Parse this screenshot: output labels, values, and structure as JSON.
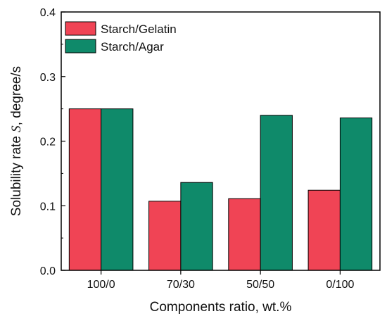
{
  "chart_data": {
    "type": "bar",
    "categories": [
      "100/0",
      "70/30",
      "50/50",
      "0/100"
    ],
    "series": [
      {
        "name": "Starch/Gelatin",
        "values": [
          0.25,
          0.107,
          0.111,
          0.124
        ],
        "color": "#f04455"
      },
      {
        "name": "Starch/Agar",
        "values": [
          0.25,
          0.136,
          0.24,
          0.236
        ],
        "color": "#0f8a6a"
      }
    ],
    "title": "",
    "xlabel": "Components ratio, wt.%",
    "ylabel_prefix": "Solubility rate ",
    "ylabel_symbol": "S",
    "ylabel_suffix": ", degree/s",
    "ylim": [
      0,
      0.4
    ],
    "yticks": [
      "0.0",
      "0.1",
      "0.2",
      "0.3",
      "0.4"
    ],
    "grid": false,
    "legend_position": "top-left"
  }
}
